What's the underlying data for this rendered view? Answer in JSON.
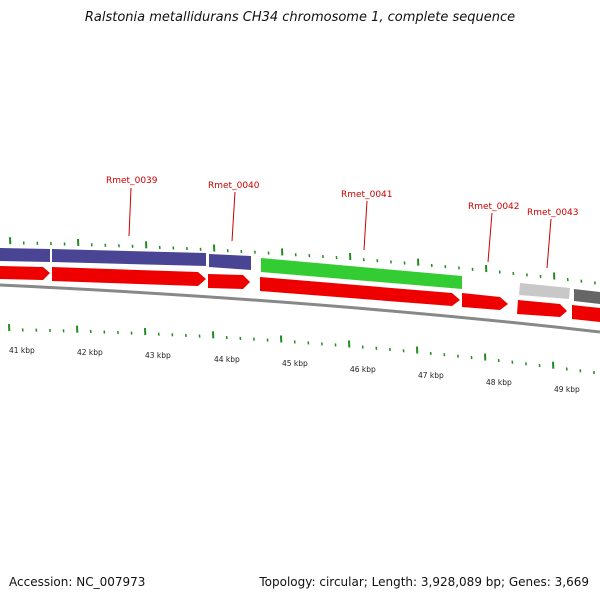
{
  "title": "Ralstonia metallidurans CH34 chromosome 1, complete sequence",
  "footer": {
    "accession": "Accession: NC_007973",
    "summary": "Topology: circular; Length: 3,928,089 bp; Genes: 3,669"
  },
  "colors": {
    "forward_strand": "#ee0000",
    "cog_blue": "#4a4494",
    "cog_green": "#33cc33",
    "cog_lightgray": "#c8c8c8",
    "cog_darkgray": "#666666",
    "tick": "#228b22",
    "label": "#cc0000",
    "backbone": "#888888"
  },
  "gene_labels": [
    "Rmet_0039",
    "Rmet_0040",
    "Rmet_0041",
    "Rmet_0042",
    "Rmet_0043"
  ],
  "kbp_labels": [
    "41 kbp",
    "42 kbp",
    "43 kbp",
    "44 kbp",
    "45 kbp",
    "46 kbp",
    "47 kbp",
    "48 kbp",
    "49 kbp"
  ]
}
